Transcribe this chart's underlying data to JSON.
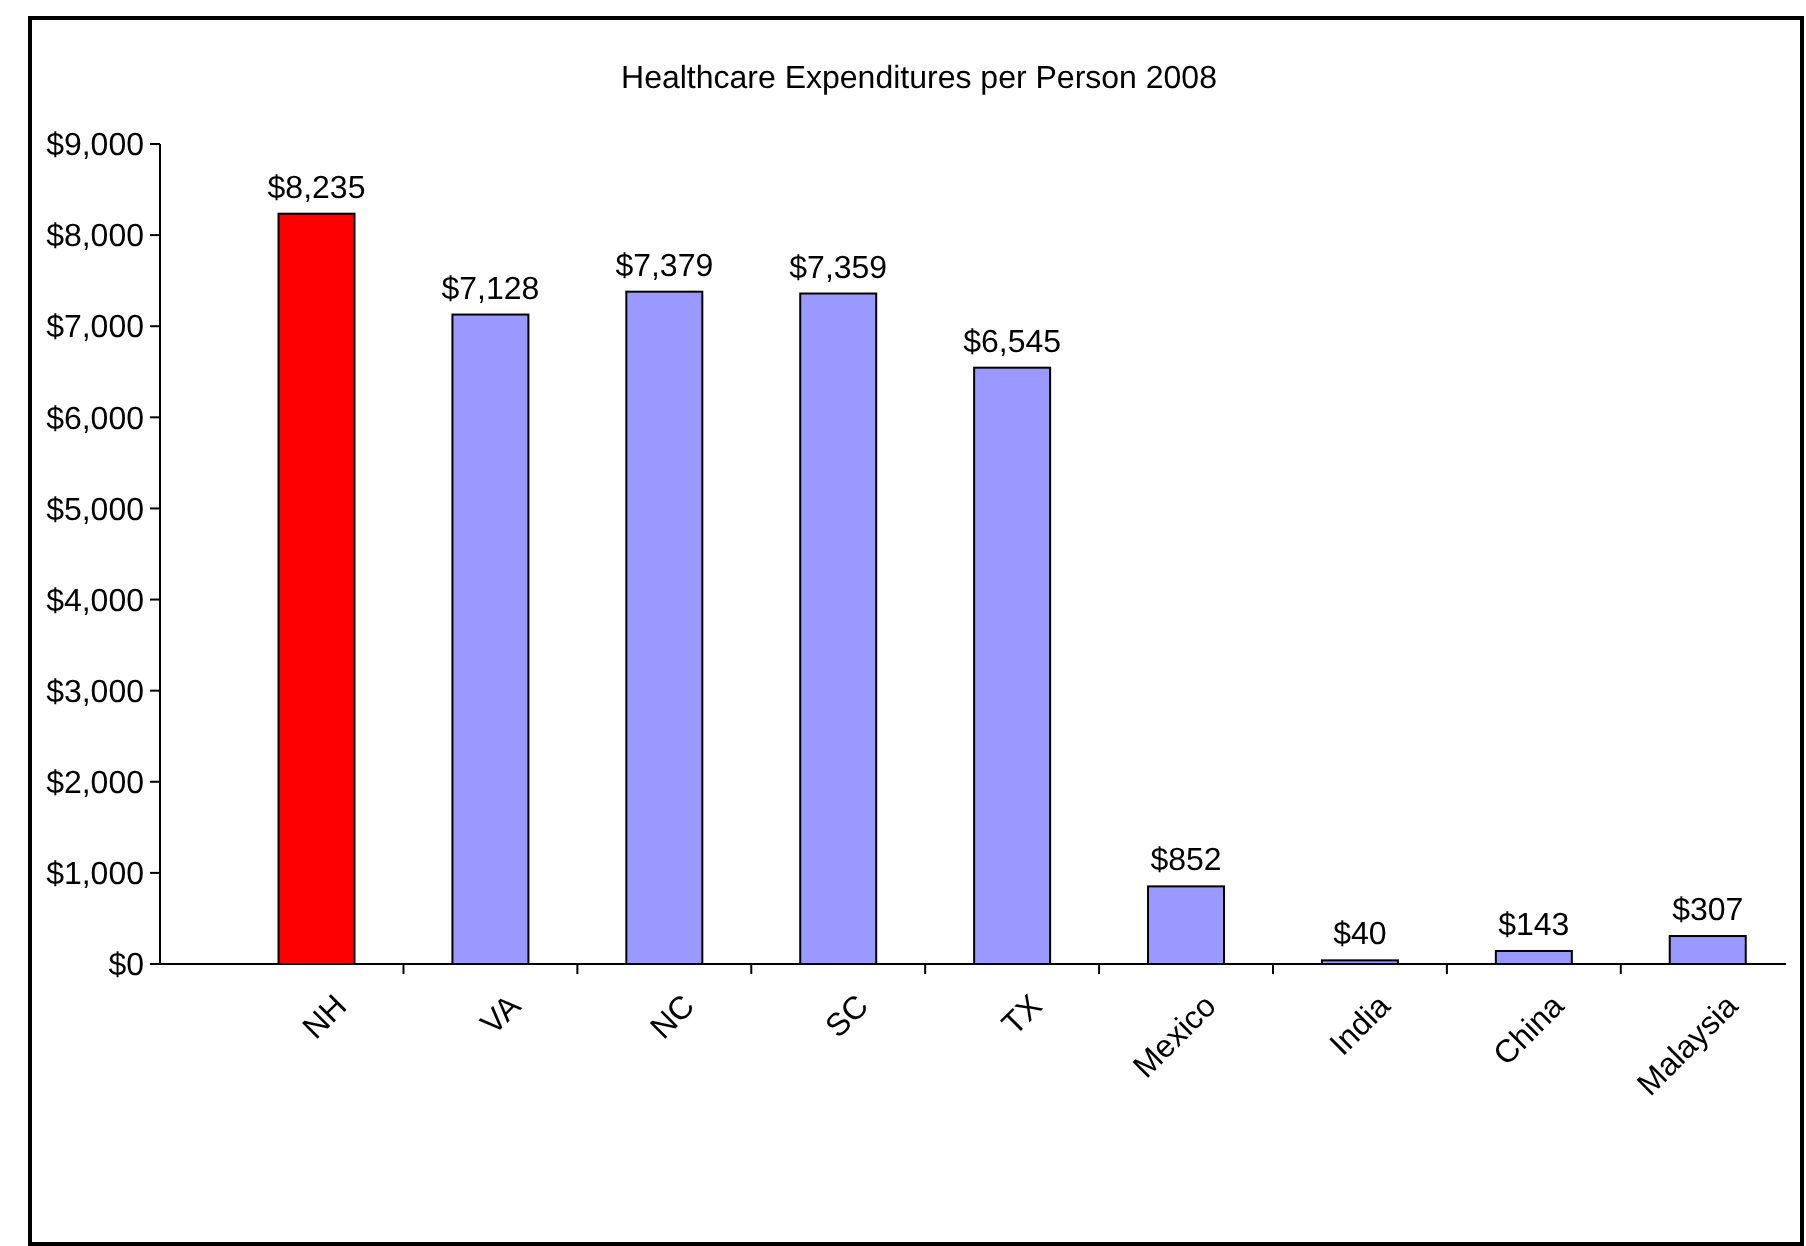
{
  "chart_data": {
    "type": "bar",
    "title": "Healthcare Expenditures per Person 2008",
    "categories": [
      "NH",
      "VA",
      "NC",
      "SC",
      "TX",
      "Mexico",
      "India",
      "China",
      "Malaysia"
    ],
    "values": [
      8235,
      7128,
      7379,
      7359,
      6545,
      852,
      40,
      143,
      307
    ],
    "value_labels": [
      "$8,235",
      "$7,128",
      "$7,379",
      "$7,359",
      "$6,545",
      "$852",
      "$40",
      "$143",
      "$307"
    ],
    "colors": [
      "#ff0000",
      "#9999ff",
      "#9999ff",
      "#9999ff",
      "#9999ff",
      "#9999ff",
      "#9999ff",
      "#9999ff",
      "#9999ff"
    ],
    "ylim": [
      0,
      9000
    ],
    "yticks": [
      {
        "value": 0,
        "label": "$0"
      },
      {
        "value": 1000,
        "label": "$1,000"
      },
      {
        "value": 2000,
        "label": "$2,000"
      },
      {
        "value": 3000,
        "label": "$3,000"
      },
      {
        "value": 4000,
        "label": "$4,000"
      },
      {
        "value": 5000,
        "label": "$5,000"
      },
      {
        "value": 6000,
        "label": "$6,000"
      },
      {
        "value": 7000,
        "label": "$7,000"
      },
      {
        "value": 8000,
        "label": "$8,000"
      },
      {
        "value": 9000,
        "label": "$9,000"
      }
    ],
    "grid": false
  }
}
